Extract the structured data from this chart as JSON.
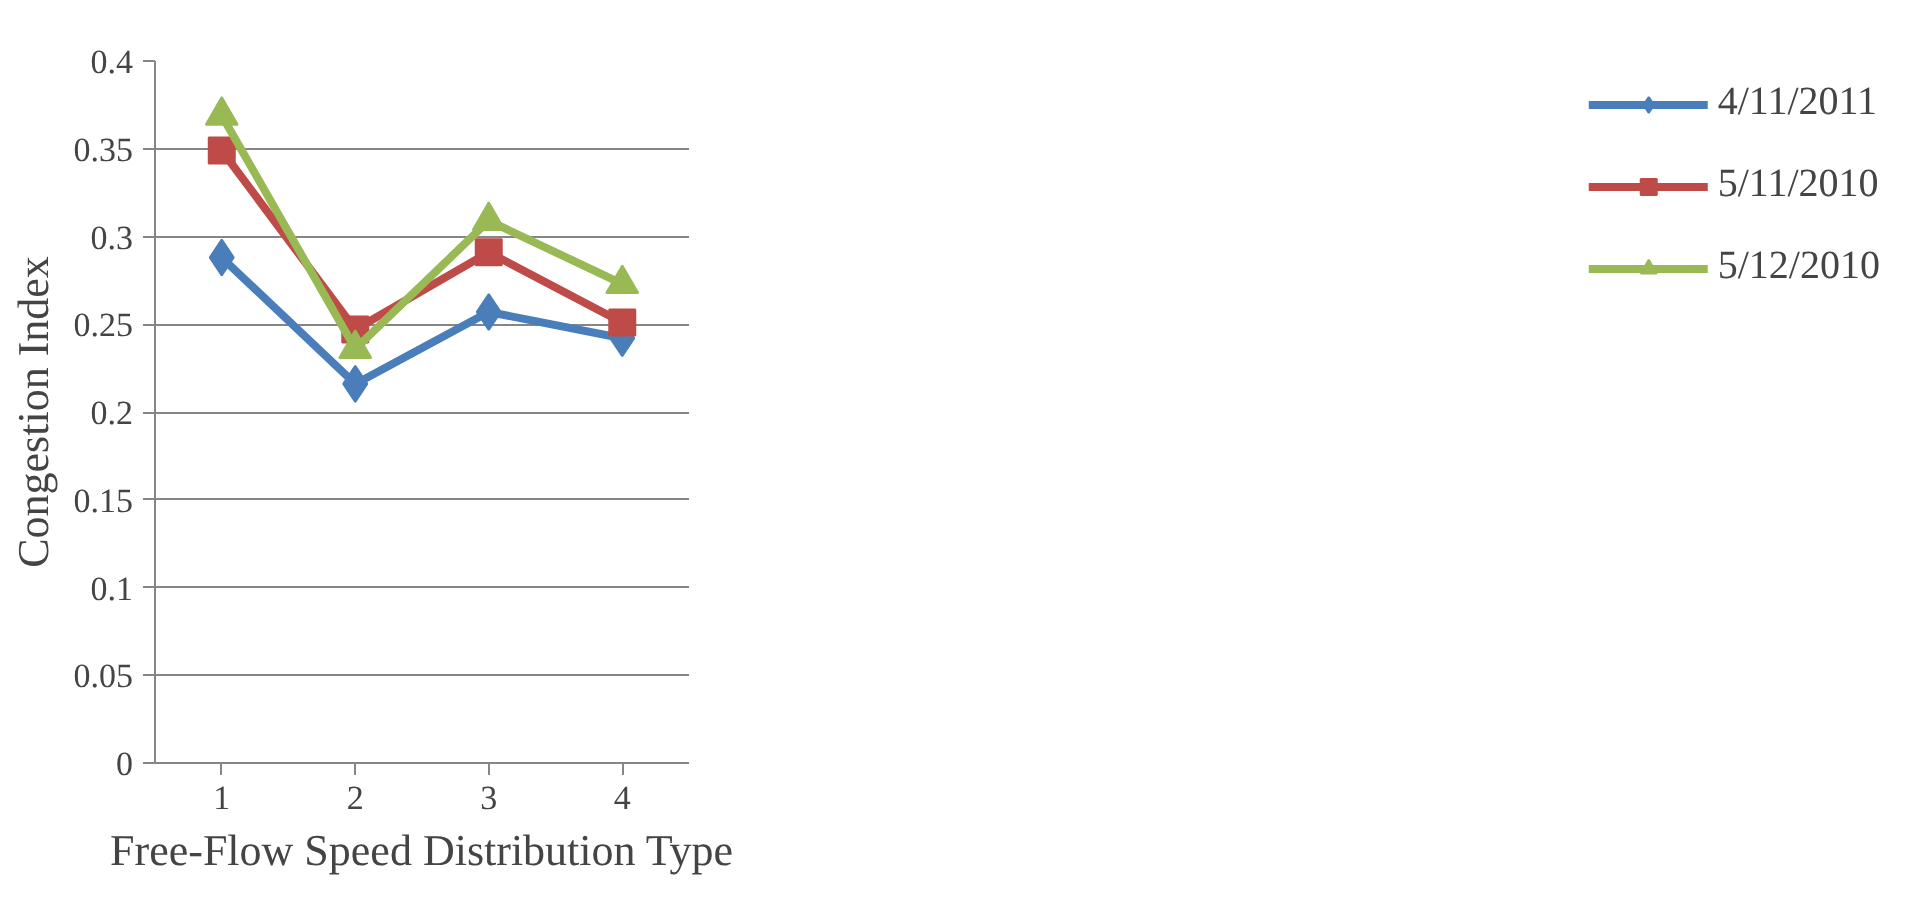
{
  "chart_data": {
    "type": "line",
    "xlabel": "Free-Flow Speed Distribution Type",
    "ylabel": "Congestion Index",
    "categories": [
      "1",
      "2",
      "3",
      "4"
    ],
    "series": [
      {
        "name": "4/11/2011",
        "color": "#4a7ebb",
        "marker": "diamond",
        "values": [
          0.288,
          0.216,
          0.257,
          0.242
        ]
      },
      {
        "name": "5/11/2010",
        "color": "#be4b48",
        "marker": "square",
        "values": [
          0.349,
          0.247,
          0.291,
          0.251
        ]
      },
      {
        "name": "5/12/2010",
        "color": "#98b954",
        "marker": "triangle",
        "values": [
          0.369,
          0.236,
          0.309,
          0.273
        ]
      }
    ],
    "ylim": [
      0,
      0.4
    ],
    "yticks": [
      0,
      0.05,
      0.1,
      0.15,
      0.2,
      0.25,
      0.3,
      0.35,
      0.4
    ],
    "grid": "y",
    "legend": "right",
    "line_style": "solid"
  }
}
